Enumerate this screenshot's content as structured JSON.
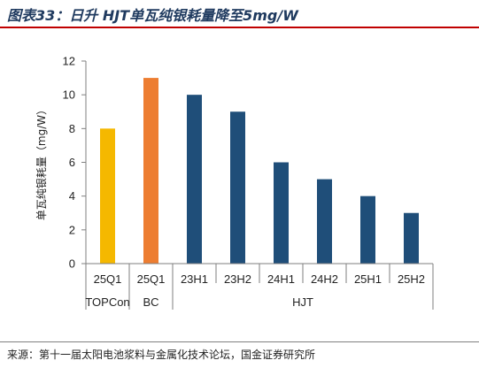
{
  "figure": {
    "title": "图表33：日升 HJT单瓦纯银耗量降至5mg/W",
    "source": "来源：第十一届太阳电池浆料与金属化技术论坛，国金证券研究所"
  },
  "colors": {
    "TOPCon": "#f5b800",
    "BC": "#ed7d31",
    "HJT": "#1f4e79",
    "axis": "#7f7f7f",
    "title_rule": "#c00000"
  },
  "chart_data": {
    "type": "bar",
    "title": "",
    "ylabel": "单瓦纯银耗量（mg/W）",
    "xlabel": "",
    "ylim": [
      0,
      12
    ],
    "yticks": [
      0,
      2,
      4,
      6,
      8,
      10,
      12
    ],
    "grid": false,
    "categories": [
      "25Q1",
      "25Q1",
      "23H1",
      "23H2",
      "24H1",
      "24H2",
      "25H1",
      "25H2"
    ],
    "values": [
      8,
      11,
      10,
      9,
      6,
      5,
      4,
      3
    ],
    "bar_groups": [
      "TOPCon",
      "BC",
      "HJT",
      "HJT",
      "HJT",
      "HJT",
      "HJT",
      "HJT"
    ],
    "groups": [
      {
        "name": "TOPCon",
        "count": 1
      },
      {
        "name": "BC",
        "count": 1
      },
      {
        "name": "HJT",
        "count": 6
      }
    ]
  }
}
